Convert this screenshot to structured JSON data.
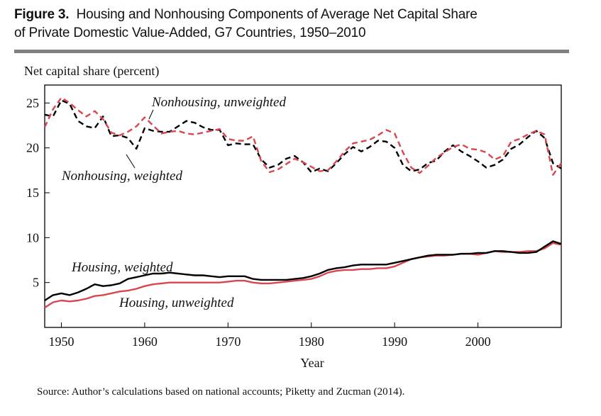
{
  "figure": {
    "label": "Figure 3.",
    "title_line1": "Housing and Nonhousing Components of Average Net Capital Share",
    "title_line2": "of Private Domestic Value-Added, G7 Countries, 1950–2010"
  },
  "source": "Source: Author’s calculations based on national accounts; Piketty and Zucman (2014).",
  "colors": {
    "black_series": "#000000",
    "red_series": "#d9464f",
    "rule": "#808080"
  },
  "chart_data": {
    "type": "line",
    "title": "",
    "xlabel": "Year",
    "ylabel": "Net capital share (percent)",
    "xlim": [
      1948,
      2010
    ],
    "ylim": [
      0,
      27
    ],
    "xticks": [
      1950,
      1960,
      1970,
      1980,
      1990,
      2000
    ],
    "yticks": [
      5,
      10,
      15,
      20,
      25
    ],
    "grid": false,
    "legend": "none",
    "annotations": [
      {
        "text": "Nonhousing, unweighted",
        "series": "Nonhousing, unweighted"
      },
      {
        "text": "Nonhousing, weighted",
        "series": "Nonhousing, weighted"
      },
      {
        "text": "Housing, weighted",
        "series": "Housing, weighted"
      },
      {
        "text": "Housing, unweighted",
        "series": "Housing, unweighted"
      }
    ],
    "series": [
      {
        "name": "Nonhousing, unweighted",
        "color": "#d9464f",
        "dash": "dashed",
        "x": [
          1948,
          1949,
          1950,
          1951,
          1952,
          1953,
          1954,
          1955,
          1956,
          1957,
          1958,
          1959,
          1960,
          1961,
          1962,
          1963,
          1964,
          1965,
          1966,
          1967,
          1968,
          1969,
          1970,
          1971,
          1972,
          1973,
          1974,
          1975,
          1976,
          1977,
          1978,
          1979,
          1980,
          1981,
          1982,
          1983,
          1984,
          1985,
          1986,
          1987,
          1988,
          1989,
          1990,
          1991,
          1992,
          1993,
          1994,
          1995,
          1996,
          1997,
          1998,
          1999,
          2000,
          2001,
          2002,
          2003,
          2004,
          2005,
          2006,
          2007,
          2008,
          2009,
          2010
        ],
        "y": [
          22.3,
          24.3,
          25.6,
          25.0,
          24.2,
          23.5,
          24.1,
          23.2,
          21.7,
          21.4,
          21.8,
          22.4,
          23.4,
          22.5,
          21.6,
          21.8,
          21.9,
          21.6,
          21.5,
          21.7,
          21.9,
          22.1,
          21.0,
          20.8,
          20.8,
          21.3,
          18.5,
          17.3,
          17.6,
          18.2,
          18.8,
          18.4,
          17.9,
          17.4,
          17.5,
          18.5,
          19.6,
          20.5,
          20.7,
          20.9,
          21.4,
          22.0,
          21.6,
          19.5,
          17.8,
          17.2,
          18.0,
          18.9,
          19.5,
          20.1,
          20.4,
          19.9,
          19.8,
          19.5,
          18.7,
          19.1,
          20.7,
          21.0,
          21.5,
          21.9,
          21.5,
          17.0,
          18.3
        ]
      },
      {
        "name": "Nonhousing, weighted",
        "color": "#000000",
        "dash": "dashed",
        "x": [
          1948,
          1949,
          1950,
          1951,
          1952,
          1953,
          1954,
          1955,
          1956,
          1957,
          1958,
          1959,
          1960,
          1961,
          1962,
          1963,
          1964,
          1965,
          1966,
          1967,
          1968,
          1969,
          1970,
          1971,
          1972,
          1973,
          1974,
          1975,
          1976,
          1977,
          1978,
          1979,
          1980,
          1981,
          1982,
          1983,
          1984,
          1985,
          1986,
          1987,
          1988,
          1989,
          1990,
          1991,
          1992,
          1993,
          1994,
          1995,
          1996,
          1997,
          1998,
          1999,
          2000,
          2001,
          2002,
          2003,
          2004,
          2005,
          2006,
          2007,
          2008,
          2009,
          2010
        ],
        "y": [
          23.7,
          23.5,
          25.3,
          24.9,
          23.0,
          22.4,
          22.2,
          23.5,
          21.3,
          21.4,
          21.1,
          19.9,
          22.2,
          21.9,
          21.8,
          21.8,
          22.4,
          23.0,
          22.8,
          22.3,
          22.0,
          22.0,
          20.3,
          20.5,
          20.4,
          20.4,
          18.7,
          17.8,
          18.1,
          18.8,
          19.1,
          18.4,
          17.3,
          17.7,
          17.4,
          18.3,
          19.3,
          20.1,
          19.6,
          20.1,
          20.8,
          20.7,
          20.0,
          18.1,
          17.4,
          17.6,
          18.3,
          18.6,
          19.6,
          20.3,
          19.6,
          19.1,
          18.5,
          17.8,
          18.1,
          18.7,
          19.9,
          20.4,
          21.2,
          21.9,
          21.1,
          18.3,
          17.7
        ]
      },
      {
        "name": "Housing, weighted",
        "color": "#000000",
        "dash": "solid",
        "x": [
          1948,
          1949,
          1950,
          1951,
          1952,
          1953,
          1954,
          1955,
          1956,
          1957,
          1958,
          1959,
          1960,
          1961,
          1962,
          1963,
          1964,
          1965,
          1966,
          1967,
          1968,
          1969,
          1970,
          1971,
          1972,
          1973,
          1974,
          1975,
          1976,
          1977,
          1978,
          1979,
          1980,
          1981,
          1982,
          1983,
          1984,
          1985,
          1986,
          1987,
          1988,
          1989,
          1990,
          1991,
          1992,
          1993,
          1994,
          1995,
          1996,
          1997,
          1998,
          1999,
          2000,
          2001,
          2002,
          2003,
          2004,
          2005,
          2006,
          2007,
          2008,
          2009,
          2010
        ],
        "y": [
          3.0,
          3.6,
          3.8,
          3.6,
          3.9,
          4.3,
          4.8,
          4.6,
          4.7,
          4.9,
          5.4,
          5.6,
          5.8,
          6.0,
          6.0,
          6.1,
          6.0,
          5.9,
          5.8,
          5.8,
          5.7,
          5.6,
          5.7,
          5.7,
          5.7,
          5.4,
          5.3,
          5.3,
          5.3,
          5.3,
          5.4,
          5.5,
          5.7,
          6.0,
          6.4,
          6.6,
          6.7,
          6.9,
          7.0,
          7.0,
          7.0,
          7.0,
          7.2,
          7.4,
          7.6,
          7.8,
          8.0,
          8.1,
          8.1,
          8.1,
          8.2,
          8.2,
          8.3,
          8.3,
          8.5,
          8.5,
          8.4,
          8.3,
          8.3,
          8.4,
          9.0,
          9.6,
          9.3
        ]
      },
      {
        "name": "Housing, unweighted",
        "color": "#d9464f",
        "dash": "solid",
        "x": [
          1948,
          1949,
          1950,
          1951,
          1952,
          1953,
          1954,
          1955,
          1956,
          1957,
          1958,
          1959,
          1960,
          1961,
          1962,
          1963,
          1964,
          1965,
          1966,
          1967,
          1968,
          1969,
          1970,
          1971,
          1972,
          1973,
          1974,
          1975,
          1976,
          1977,
          1978,
          1979,
          1980,
          1981,
          1982,
          1983,
          1984,
          1985,
          1986,
          1987,
          1988,
          1989,
          1990,
          1991,
          1992,
          1993,
          1994,
          1995,
          1996,
          1997,
          1998,
          1999,
          2000,
          2001,
          2002,
          2003,
          2004,
          2005,
          2006,
          2007,
          2008,
          2009,
          2010
        ],
        "y": [
          2.2,
          2.8,
          3.0,
          2.9,
          3.0,
          3.2,
          3.5,
          3.6,
          3.8,
          4.0,
          4.1,
          4.3,
          4.6,
          4.8,
          4.9,
          5.0,
          5.0,
          5.0,
          5.0,
          5.0,
          5.0,
          5.0,
          5.1,
          5.2,
          5.2,
          5.0,
          4.9,
          4.9,
          5.0,
          5.1,
          5.2,
          5.3,
          5.4,
          5.7,
          6.1,
          6.3,
          6.4,
          6.4,
          6.5,
          6.5,
          6.6,
          6.6,
          6.8,
          7.2,
          7.6,
          7.8,
          7.9,
          8.0,
          8.0,
          8.1,
          8.2,
          8.2,
          8.1,
          8.3,
          8.5,
          8.4,
          8.4,
          8.4,
          8.5,
          8.5,
          8.8,
          9.4,
          9.2
        ]
      }
    ]
  }
}
